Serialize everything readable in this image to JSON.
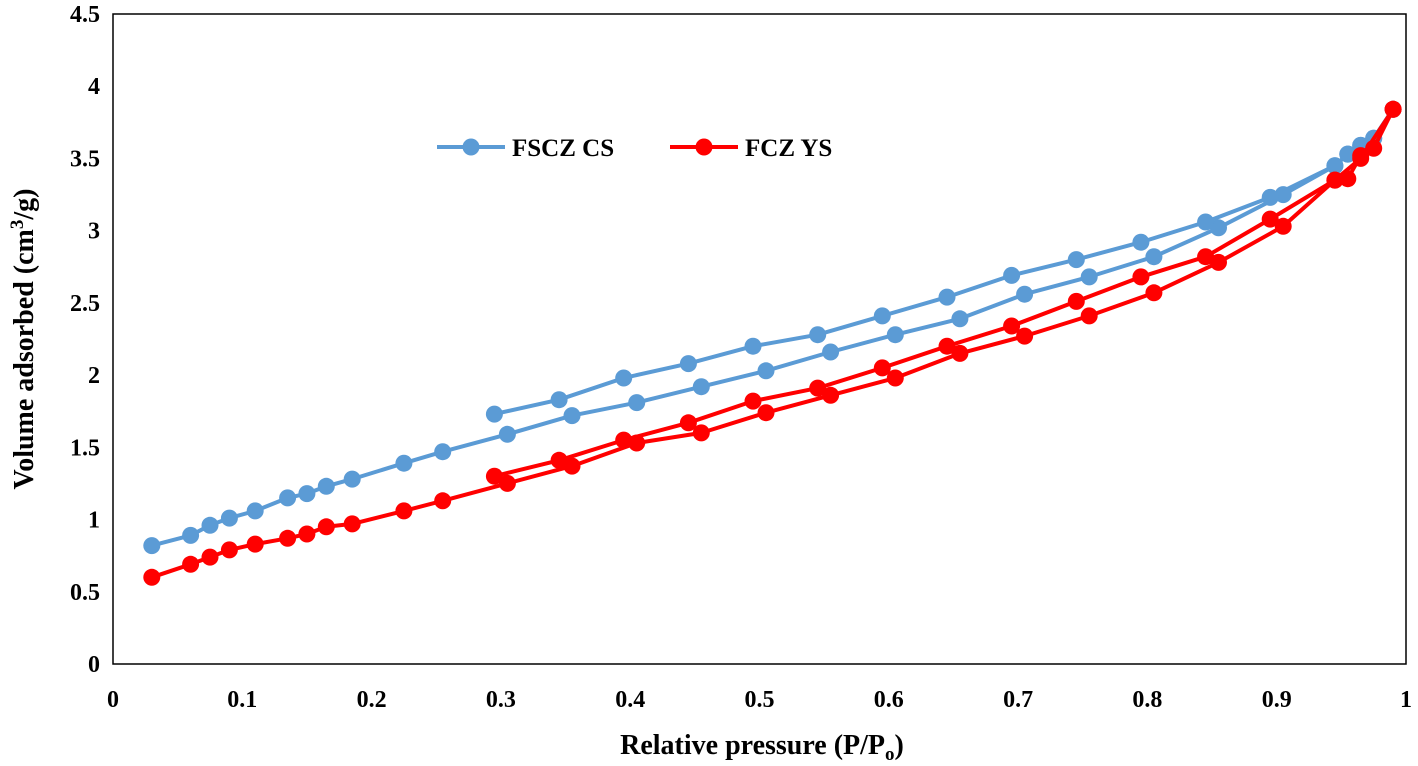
{
  "chart_data": {
    "type": "line",
    "title": "",
    "xlabel": {
      "main": "Relative pressure  (P/P",
      "sub": "o",
      "close": ")"
    },
    "ylabel": {
      "main": "Volume adsorbed (cm",
      "sup": "3",
      "close": "/g)"
    },
    "xlim": [
      0,
      1
    ],
    "ylim": [
      0,
      4.5
    ],
    "x_ticks": [
      0,
      0.1,
      0.2,
      0.3,
      0.4,
      0.5,
      0.6,
      0.7,
      0.8,
      0.9,
      1
    ],
    "x_tick_labels": [
      "0",
      "0.1",
      "0.2",
      "0.3",
      "0.4",
      "0.5",
      "0.6",
      "0.7",
      "0.8",
      "0.9",
      "1"
    ],
    "y_ticks": [
      0,
      0.5,
      1,
      1.5,
      2,
      2.5,
      3,
      3.5,
      4,
      4.5
    ],
    "y_tick_labels": [
      "0",
      "0.5",
      "1",
      "1.5",
      "2",
      "2.5",
      "3",
      "3.5",
      "4",
      "4.5"
    ],
    "grid": false,
    "legend_position": "top-left, inside plot",
    "series": [
      {
        "name": "FSCZ CS",
        "color": "#5B9BD5",
        "adsorption": [
          [
            0.03,
            0.82
          ],
          [
            0.06,
            0.89
          ],
          [
            0.075,
            0.96
          ],
          [
            0.09,
            1.01
          ],
          [
            0.11,
            1.06
          ],
          [
            0.135,
            1.15
          ],
          [
            0.15,
            1.18
          ],
          [
            0.165,
            1.23
          ],
          [
            0.185,
            1.28
          ],
          [
            0.225,
            1.39
          ],
          [
            0.255,
            1.47
          ],
          [
            0.305,
            1.59
          ],
          [
            0.355,
            1.72
          ],
          [
            0.405,
            1.81
          ],
          [
            0.455,
            1.92
          ],
          [
            0.505,
            2.03
          ],
          [
            0.555,
            2.16
          ],
          [
            0.605,
            2.28
          ],
          [
            0.655,
            2.39
          ],
          [
            0.705,
            2.56
          ],
          [
            0.755,
            2.68
          ],
          [
            0.805,
            2.82
          ],
          [
            0.855,
            3.02
          ],
          [
            0.905,
            3.25
          ],
          [
            0.945,
            3.45
          ],
          [
            0.955,
            3.53
          ],
          [
            0.965,
            3.59
          ],
          [
            0.975,
            3.64
          ],
          [
            0.99,
            3.84
          ]
        ],
        "desorption": [
          [
            0.99,
            3.84
          ],
          [
            0.975,
            3.64
          ],
          [
            0.965,
            3.59
          ],
          [
            0.955,
            3.53
          ],
          [
            0.945,
            3.45
          ],
          [
            0.895,
            3.23
          ],
          [
            0.845,
            3.06
          ],
          [
            0.795,
            2.92
          ],
          [
            0.745,
            2.8
          ],
          [
            0.695,
            2.69
          ],
          [
            0.645,
            2.54
          ],
          [
            0.595,
            2.41
          ],
          [
            0.545,
            2.28
          ],
          [
            0.495,
            2.2
          ],
          [
            0.445,
            2.08
          ],
          [
            0.395,
            1.98
          ],
          [
            0.345,
            1.83
          ],
          [
            0.295,
            1.73
          ]
        ]
      },
      {
        "name": "FCZ YS",
        "color": "#FF0000",
        "adsorption": [
          [
            0.03,
            0.6
          ],
          [
            0.06,
            0.69
          ],
          [
            0.075,
            0.74
          ],
          [
            0.09,
            0.79
          ],
          [
            0.11,
            0.83
          ],
          [
            0.135,
            0.87
          ],
          [
            0.15,
            0.9
          ],
          [
            0.165,
            0.95
          ],
          [
            0.185,
            0.97
          ],
          [
            0.225,
            1.06
          ],
          [
            0.255,
            1.13
          ],
          [
            0.305,
            1.25
          ],
          [
            0.355,
            1.37
          ],
          [
            0.405,
            1.53
          ],
          [
            0.455,
            1.6
          ],
          [
            0.505,
            1.74
          ],
          [
            0.555,
            1.86
          ],
          [
            0.605,
            1.98
          ],
          [
            0.655,
            2.15
          ],
          [
            0.705,
            2.27
          ],
          [
            0.755,
            2.41
          ],
          [
            0.805,
            2.57
          ],
          [
            0.855,
            2.78
          ],
          [
            0.905,
            3.03
          ],
          [
            0.945,
            3.35
          ],
          [
            0.955,
            3.36
          ],
          [
            0.965,
            3.52
          ],
          [
            0.975,
            3.57
          ],
          [
            0.99,
            3.84
          ]
        ],
        "desorption": [
          [
            0.99,
            3.84
          ],
          [
            0.965,
            3.5
          ],
          [
            0.945,
            3.35
          ],
          [
            0.895,
            3.08
          ],
          [
            0.845,
            2.82
          ],
          [
            0.795,
            2.68
          ],
          [
            0.745,
            2.51
          ],
          [
            0.695,
            2.34
          ],
          [
            0.645,
            2.2
          ],
          [
            0.595,
            2.05
          ],
          [
            0.545,
            1.91
          ],
          [
            0.495,
            1.82
          ],
          [
            0.445,
            1.67
          ],
          [
            0.395,
            1.55
          ],
          [
            0.345,
            1.41
          ],
          [
            0.295,
            1.3
          ]
        ]
      }
    ]
  }
}
